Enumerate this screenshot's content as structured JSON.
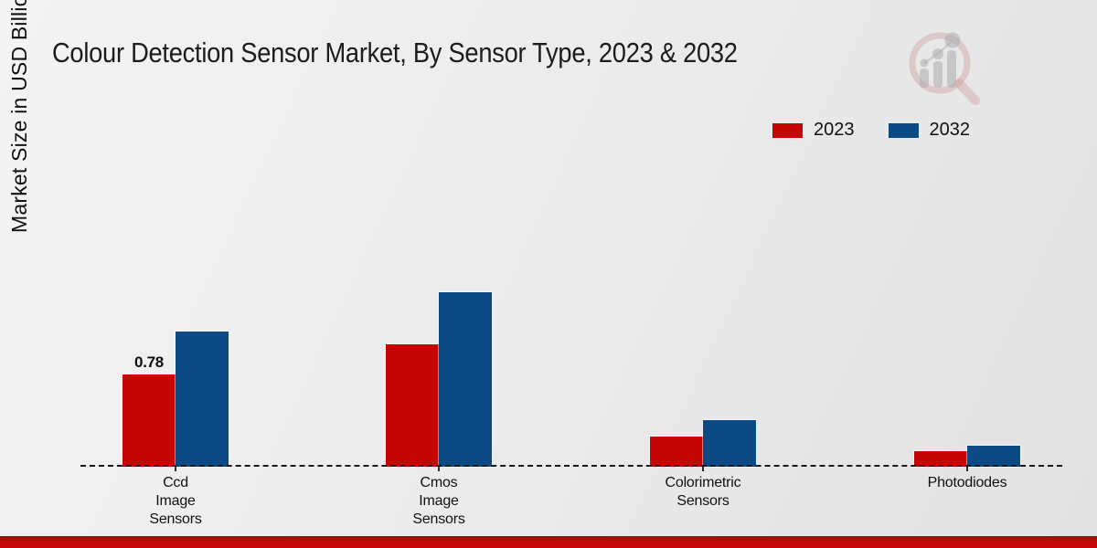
{
  "title": "Colour Detection Sensor Market, By Sensor Type, 2023 & 2032",
  "y_axis_label": "Market Size in USD Billion",
  "colors": {
    "series_2023": "#c60505",
    "series_2032": "#0b4a84",
    "bottom_strip": "#c50707",
    "baseline": "#1a1a1a",
    "background": "#ececec"
  },
  "legend": {
    "position": "top-right",
    "items": [
      {
        "label": "2023",
        "color": "#c60505"
      },
      {
        "label": "2032",
        "color": "#0b4a84"
      }
    ]
  },
  "chart_data": {
    "type": "bar",
    "categories": [
      "Ccd Image Sensors",
      "Cmos Image Sensors",
      "Colorimetric Sensors",
      "Photodiodes"
    ],
    "category_label_lines": [
      [
        "Ccd",
        "Image",
        "Sensors"
      ],
      [
        "Cmos",
        "Image",
        "Sensors"
      ],
      [
        "Colorimetric",
        "Sensors"
      ],
      [
        "Photodiodes"
      ]
    ],
    "series": [
      {
        "name": "2023",
        "color": "#c60505",
        "values": [
          0.78,
          1.03,
          0.25,
          0.13
        ]
      },
      {
        "name": "2032",
        "color": "#0b4a84",
        "values": [
          1.14,
          1.47,
          0.39,
          0.18
        ]
      }
    ],
    "annotations": [
      {
        "series_index": 0,
        "category_index": 0,
        "text": "0.78"
      }
    ],
    "title": "Colour Detection Sensor Market, By Sensor Type, 2023 & 2032",
    "xlabel": "",
    "ylabel": "Market Size in USD Billion",
    "ylim": [
      0,
      1.6
    ],
    "grid": false,
    "y_axis_ticks_visible": false,
    "baseline_style": "dashed",
    "legend_position": "top-right"
  }
}
